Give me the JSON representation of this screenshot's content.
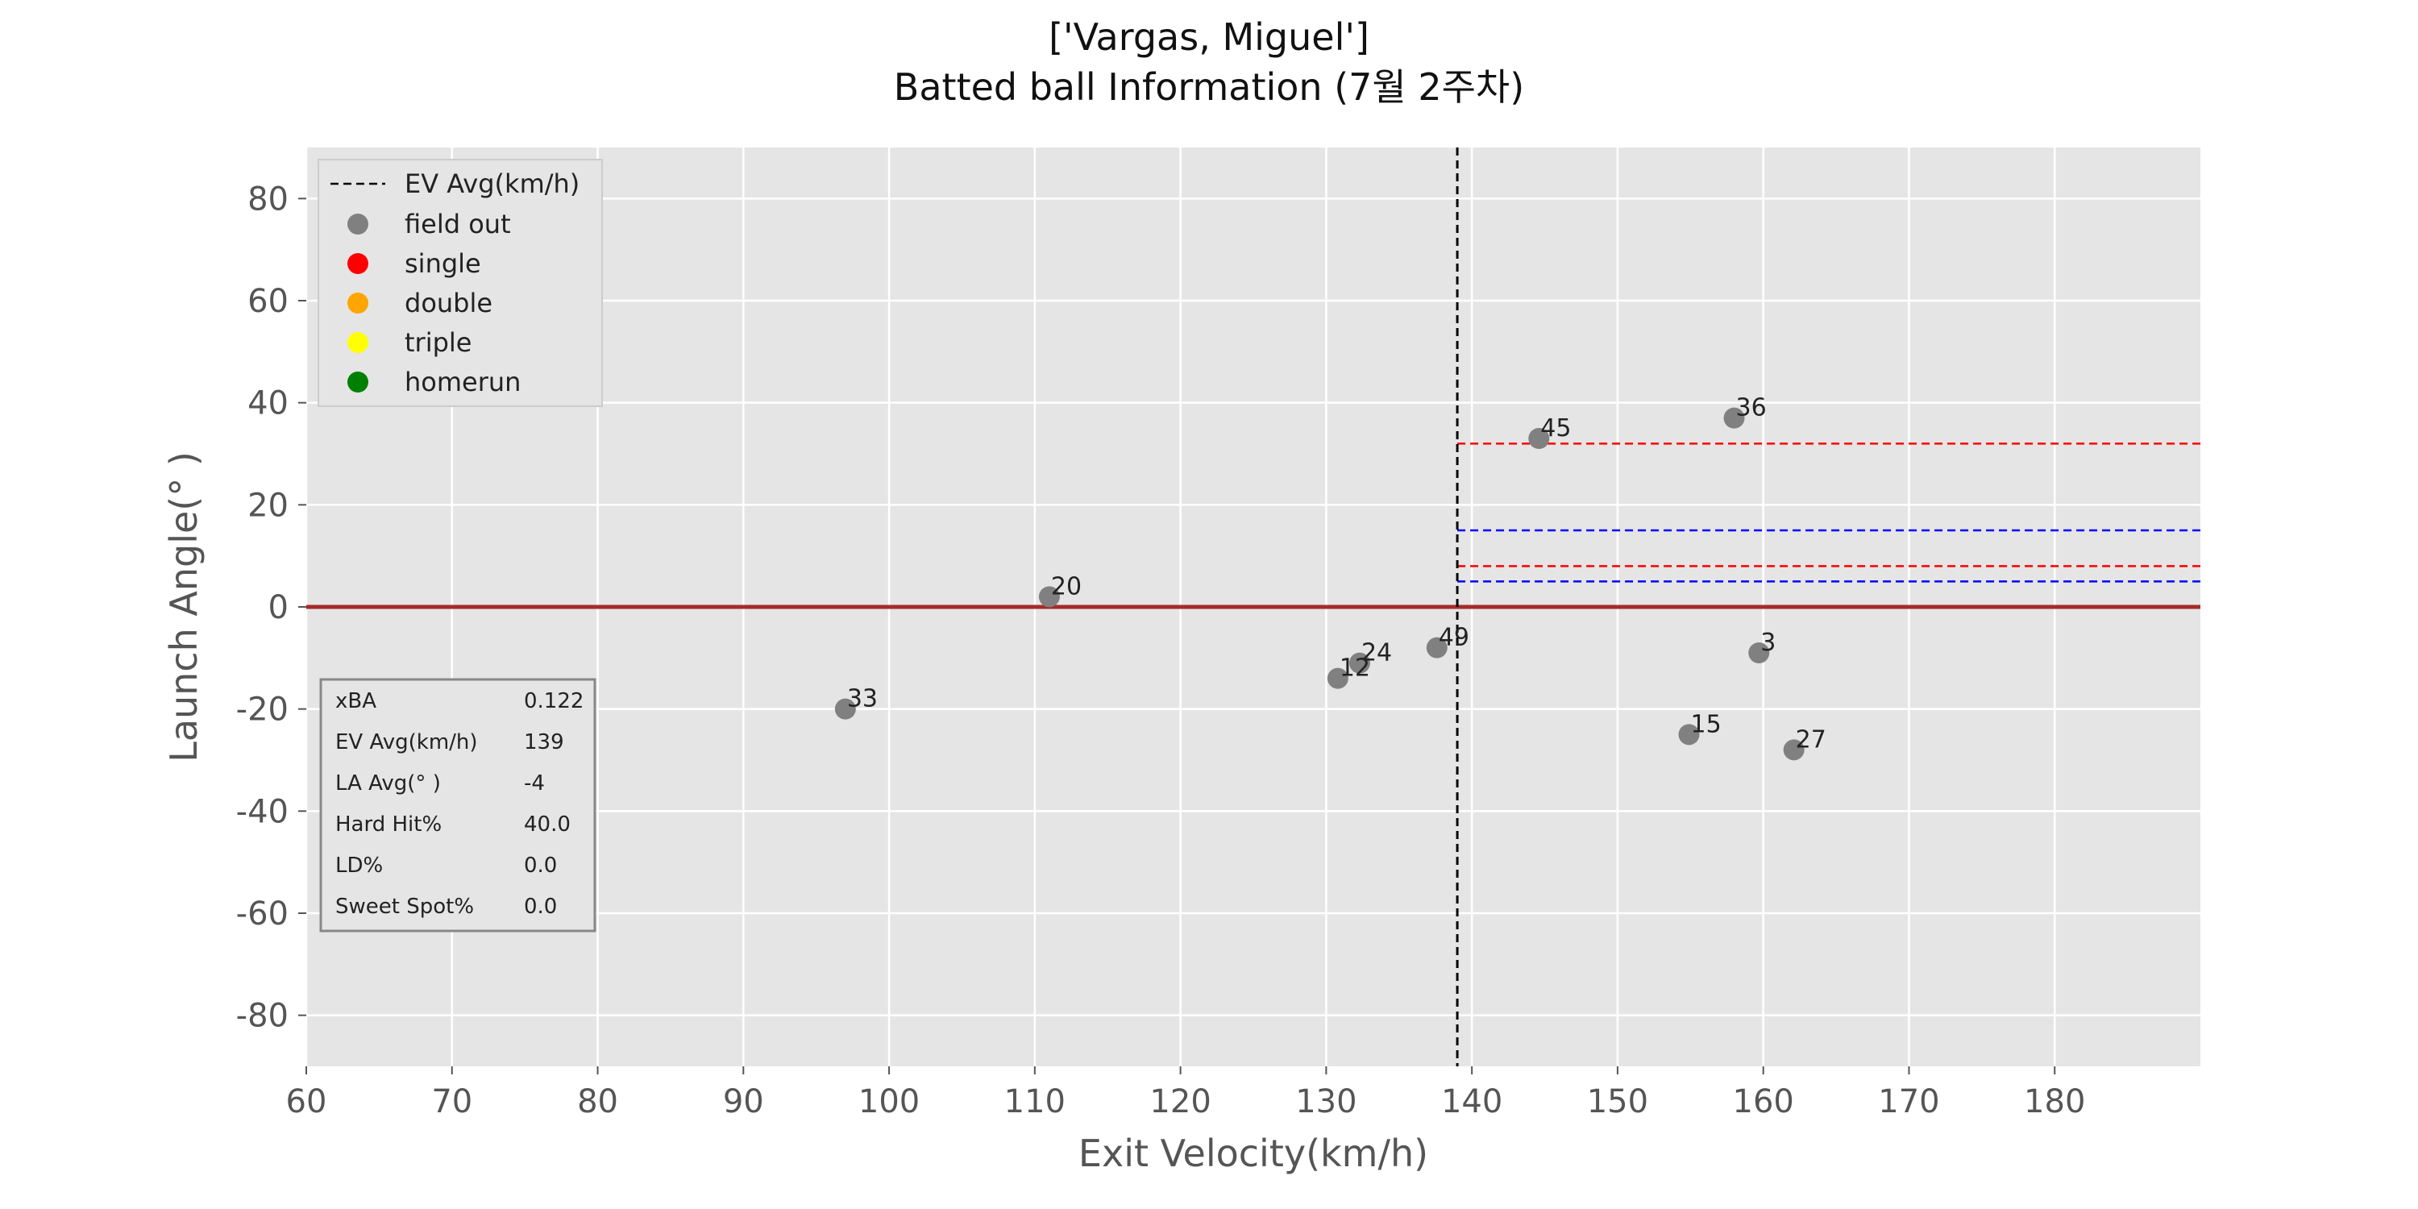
{
  "chart_data": {
    "type": "scatter",
    "title": "['Vargas, Miguel']",
    "subtitle": "Batted ball Information (7월 2주차)",
    "xlabel": "Exit Velocity(km/h)",
    "ylabel": "Launch Angle(°  )",
    "xlim": [
      60,
      190
    ],
    "ylim": [
      -90,
      90
    ],
    "xticks": [
      60,
      70,
      80,
      90,
      100,
      110,
      120,
      130,
      140,
      150,
      160,
      170,
      180
    ],
    "yticks": [
      -80,
      -60,
      -40,
      -20,
      0,
      20,
      40,
      60,
      80
    ],
    "grid": true,
    "legend_position": "upper-left",
    "legend": [
      {
        "label": "EV Avg(km/h)",
        "kind": "dashed-line",
        "color": "#000000"
      },
      {
        "label": "field out",
        "kind": "marker",
        "color": "#808080"
      },
      {
        "label": "single",
        "kind": "marker",
        "color": "#ff0000"
      },
      {
        "label": "double",
        "kind": "marker",
        "color": "#ffa500"
      },
      {
        "label": "triple",
        "kind": "marker",
        "color": "#ffff00"
      },
      {
        "label": "homerun",
        "kind": "marker",
        "color": "#008000"
      }
    ],
    "ev_avg_line": 139,
    "zero_line": {
      "y": 0,
      "color": "#a52a2a"
    },
    "reference_lines": [
      {
        "y": 32,
        "x_from": 139,
        "color": "#ff0000",
        "style": "dashed"
      },
      {
        "y": 15,
        "x_from": 139,
        "color": "#0000ff",
        "style": "dashed"
      },
      {
        "y": 8,
        "x_from": 139,
        "color": "#ff0000",
        "style": "dashed"
      },
      {
        "y": 5,
        "x_from": 139,
        "color": "#0000ff",
        "style": "dashed"
      }
    ],
    "points": [
      {
        "label": "20",
        "x": 111,
        "y": 2,
        "result": "field out"
      },
      {
        "label": "33",
        "x": 97,
        "y": -20,
        "result": "field out"
      },
      {
        "label": "24",
        "x": 132.3,
        "y": -11,
        "result": "field out"
      },
      {
        "label": "12",
        "x": 130.8,
        "y": -14,
        "result": "field out"
      },
      {
        "label": "49",
        "x": 137.6,
        "y": -8,
        "result": "field out"
      },
      {
        "label": "45",
        "x": 144.6,
        "y": 33,
        "result": "field out"
      },
      {
        "label": "36",
        "x": 158,
        "y": 37,
        "result": "field out"
      },
      {
        "label": "3",
        "x": 159.7,
        "y": -9,
        "result": "field out"
      },
      {
        "label": "15",
        "x": 154.9,
        "y": -25,
        "result": "field out"
      },
      {
        "label": "27",
        "x": 162.1,
        "y": -28,
        "result": "field out"
      }
    ],
    "stats_table": [
      {
        "label": "xBA",
        "value": "0.122"
      },
      {
        "label": "EV Avg(km/h)",
        "value": "139"
      },
      {
        "label": "LA Avg(°  )",
        "value": "-4"
      },
      {
        "label": "Hard Hit%",
        "value": "40.0"
      },
      {
        "label": "LD%",
        "value": "0.0"
      },
      {
        "label": "Sweet Spot%",
        "value": "0.0"
      }
    ]
  }
}
